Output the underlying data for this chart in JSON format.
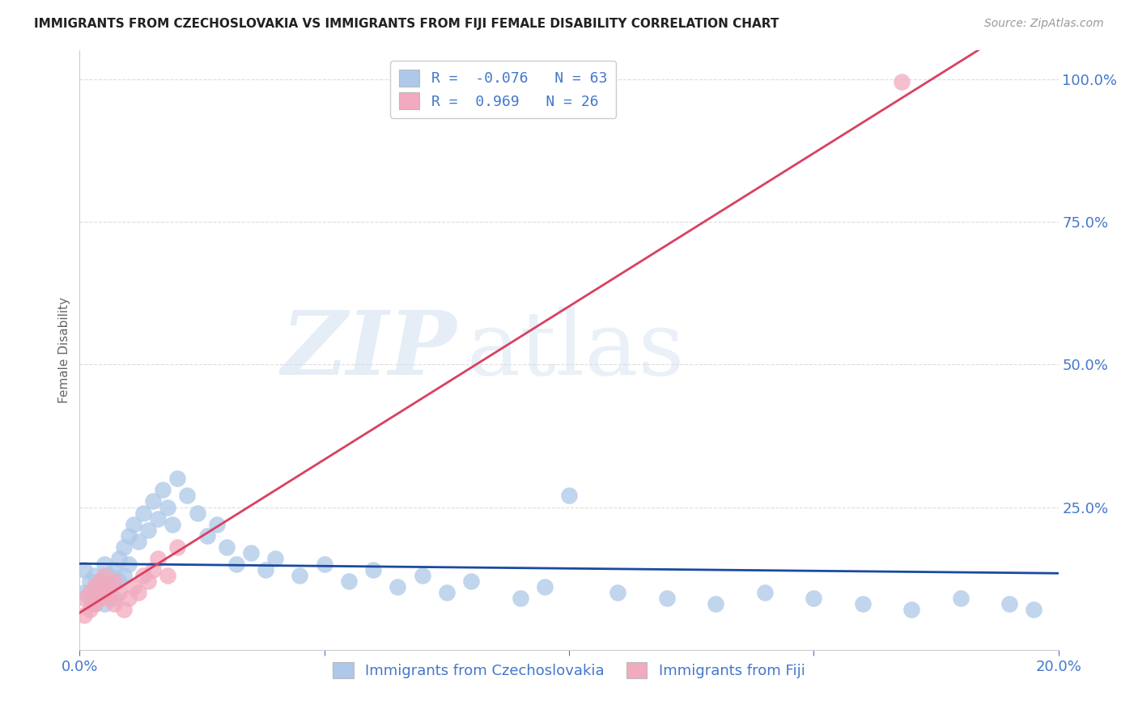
{
  "title": "IMMIGRANTS FROM CZECHOSLOVAKIA VS IMMIGRANTS FROM FIJI FEMALE DISABILITY CORRELATION CHART",
  "source": "Source: ZipAtlas.com",
  "ylabel": "Female Disability",
  "xlim": [
    0.0,
    0.2
  ],
  "ylim": [
    0.0,
    1.05
  ],
  "xticks": [
    0.0,
    0.05,
    0.1,
    0.15,
    0.2
  ],
  "xticklabels": [
    "0.0%",
    "",
    "",
    "",
    "20.0%"
  ],
  "yticks": [
    0.25,
    0.5,
    0.75,
    1.0
  ],
  "yticklabels": [
    "25.0%",
    "50.0%",
    "75.0%",
    "100.0%"
  ],
  "czech_R": -0.076,
  "czech_N": 63,
  "fiji_R": 0.969,
  "fiji_N": 26,
  "czech_color": "#adc8e8",
  "fiji_color": "#f2aabe",
  "czech_line_color": "#1a4a9e",
  "fiji_line_color": "#d94060",
  "axis_color": "#4477cc",
  "czech_x": [
    0.001,
    0.001,
    0.002,
    0.002,
    0.003,
    0.003,
    0.003,
    0.004,
    0.004,
    0.004,
    0.005,
    0.005,
    0.005,
    0.006,
    0.006,
    0.007,
    0.007,
    0.008,
    0.008,
    0.009,
    0.009,
    0.01,
    0.01,
    0.011,
    0.012,
    0.013,
    0.014,
    0.015,
    0.016,
    0.017,
    0.018,
    0.019,
    0.02,
    0.022,
    0.024,
    0.026,
    0.028,
    0.03,
    0.032,
    0.035,
    0.038,
    0.04,
    0.045,
    0.05,
    0.055,
    0.06,
    0.065,
    0.07,
    0.075,
    0.08,
    0.09,
    0.095,
    0.1,
    0.11,
    0.12,
    0.13,
    0.14,
    0.15,
    0.16,
    0.17,
    0.18,
    0.19,
    0.195
  ],
  "czech_y": [
    0.14,
    0.1,
    0.12,
    0.09,
    0.11,
    0.08,
    0.13,
    0.1,
    0.12,
    0.09,
    0.15,
    0.11,
    0.08,
    0.13,
    0.1,
    0.14,
    0.09,
    0.16,
    0.12,
    0.18,
    0.13,
    0.2,
    0.15,
    0.22,
    0.19,
    0.24,
    0.21,
    0.26,
    0.23,
    0.28,
    0.25,
    0.22,
    0.3,
    0.27,
    0.24,
    0.2,
    0.22,
    0.18,
    0.15,
    0.17,
    0.14,
    0.16,
    0.13,
    0.15,
    0.12,
    0.14,
    0.11,
    0.13,
    0.1,
    0.12,
    0.09,
    0.11,
    0.27,
    0.1,
    0.09,
    0.08,
    0.1,
    0.09,
    0.08,
    0.07,
    0.09,
    0.08,
    0.07
  ],
  "fiji_x": [
    0.001,
    0.001,
    0.002,
    0.002,
    0.003,
    0.003,
    0.004,
    0.004,
    0.005,
    0.005,
    0.006,
    0.006,
    0.007,
    0.007,
    0.008,
    0.009,
    0.01,
    0.011,
    0.012,
    0.013,
    0.014,
    0.015,
    0.016,
    0.018,
    0.02,
    0.168
  ],
  "fiji_y": [
    0.06,
    0.09,
    0.07,
    0.1,
    0.08,
    0.11,
    0.09,
    0.12,
    0.1,
    0.13,
    0.11,
    0.09,
    0.08,
    0.12,
    0.1,
    0.07,
    0.09,
    0.11,
    0.1,
    0.13,
    0.12,
    0.14,
    0.16,
    0.13,
    0.18,
    0.995
  ]
}
